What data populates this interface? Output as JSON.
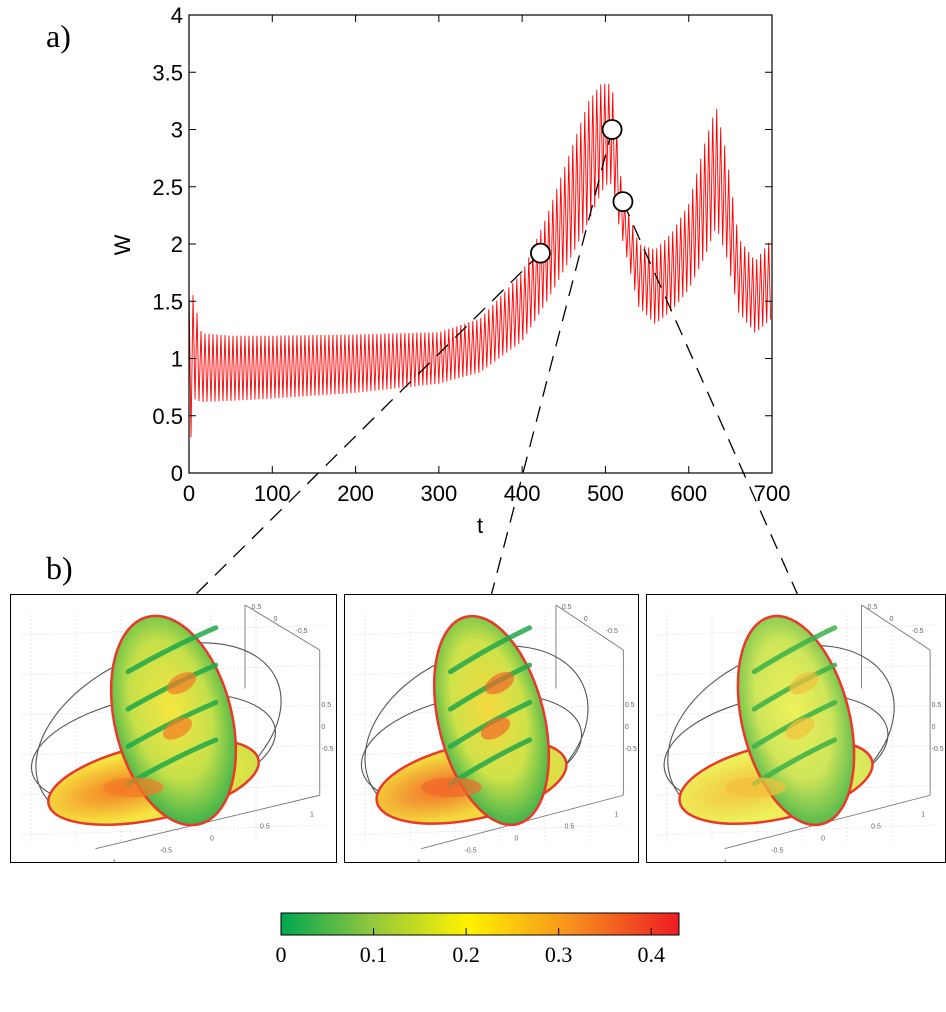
{
  "panels": {
    "a_label": "a)",
    "b_label": "b)"
  },
  "chart_data": {
    "type": "line",
    "xlabel": "t",
    "ylabel": "W",
    "xlim": [
      0,
      700
    ],
    "ylim": [
      0,
      4
    ],
    "x_ticks": [
      "0",
      "100",
      "200",
      "300",
      "400",
      "500",
      "600",
      "700"
    ],
    "y_ticks": [
      "0",
      "0.5",
      "1",
      "1.5",
      "2",
      "2.5",
      "3",
      "3.5",
      "4"
    ],
    "series_color": "#ff0000",
    "grid": false,
    "envelope": {
      "t": [
        0,
        5,
        15,
        50,
        100,
        200,
        300,
        350,
        400,
        430,
        460,
        480,
        495,
        505,
        510,
        515,
        520,
        540,
        560,
        580,
        600,
        620,
        633,
        645,
        660,
        680,
        700
      ],
      "upper": [
        1.65,
        1.55,
        1.22,
        1.2,
        1.2,
        1.21,
        1.23,
        1.35,
        1.75,
        2.25,
        2.85,
        3.25,
        3.4,
        3.4,
        3.3,
        2.9,
        2.45,
        2.0,
        1.95,
        2.1,
        2.35,
        2.9,
        3.2,
        2.8,
        2.05,
        1.85,
        2.05
      ],
      "lower": [
        0.0,
        0.65,
        0.62,
        0.63,
        0.65,
        0.7,
        0.78,
        0.88,
        1.15,
        1.5,
        1.9,
        2.2,
        2.45,
        2.55,
        2.45,
        2.2,
        2.05,
        1.45,
        1.3,
        1.42,
        1.6,
        1.9,
        2.15,
        1.9,
        1.4,
        1.22,
        1.35
      ]
    },
    "markers": [
      {
        "t": 422,
        "W": 1.92
      },
      {
        "t": 508,
        "W": 3.0
      },
      {
        "t": 521,
        "W": 2.37
      }
    ]
  },
  "colorbar": {
    "ticks": [
      "0",
      "0.1",
      "0.2",
      "0.3",
      "0.4"
    ],
    "range": [
      0,
      0.43
    ],
    "colors": [
      "#00a651",
      "#8dc63f",
      "#fff200",
      "#f7941d",
      "#ed1c24"
    ]
  },
  "snapshot_axis_labels": {
    "top": [
      "0.5",
      "0",
      "-0.5"
    ],
    "right": [
      "0.5",
      "0",
      "-0.5"
    ],
    "bottom": [
      "1",
      "0.5",
      "0",
      "-0.5",
      "-1"
    ]
  }
}
